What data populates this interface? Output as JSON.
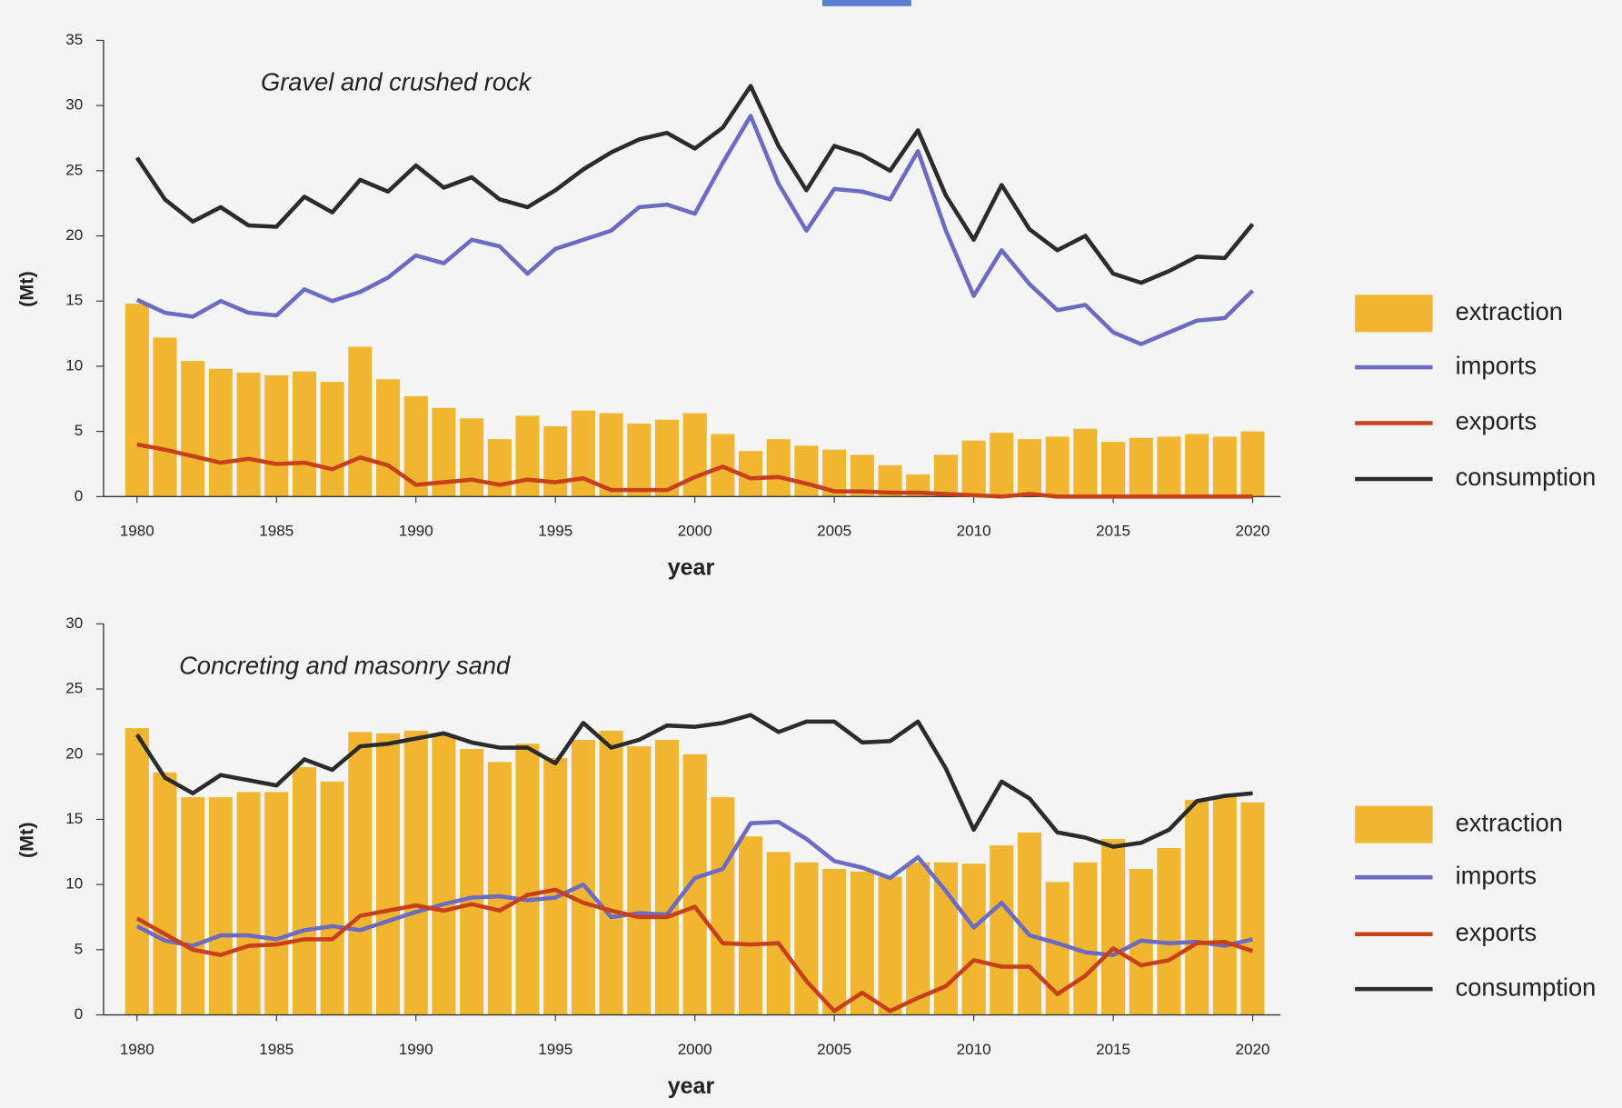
{
  "chart_data": [
    {
      "type": "combo",
      "title": "Gravel and crushed rock",
      "x_label": "year",
      "y_label": "(Mt)",
      "x": [
        1980,
        1981,
        1982,
        1983,
        1984,
        1985,
        1986,
        1987,
        1988,
        1989,
        1990,
        1991,
        1992,
        1993,
        1994,
        1995,
        1996,
        1997,
        1998,
        1999,
        2000,
        2001,
        2002,
        2003,
        2004,
        2005,
        2006,
        2007,
        2008,
        2009,
        2010,
        2011,
        2012,
        2013,
        2014,
        2015,
        2016,
        2017,
        2018,
        2019,
        2020
      ],
      "xlim": [
        1978.8,
        2021
      ],
      "xticks": [
        1980,
        1985,
        1990,
        1995,
        2000,
        2005,
        2010,
        2015,
        2020
      ],
      "ylim": [
        0,
        35
      ],
      "yticks": [
        0,
        5,
        10,
        15,
        20,
        25,
        30,
        35
      ],
      "legend": "right",
      "series": [
        {
          "name": "extraction",
          "kind": "bar",
          "color": "#f0b630",
          "values": [
            14.8,
            12.2,
            10.4,
            9.8,
            9.5,
            9.3,
            9.6,
            8.8,
            11.5,
            9.0,
            7.7,
            6.8,
            6.0,
            4.4,
            6.2,
            5.4,
            6.6,
            6.4,
            5.6,
            5.9,
            6.4,
            4.8,
            3.5,
            4.4,
            3.9,
            3.6,
            3.2,
            2.4,
            1.7,
            3.2,
            4.3,
            4.9,
            4.4,
            4.6,
            5.2,
            4.2,
            4.5,
            4.6,
            4.8,
            4.6,
            5.0
          ]
        },
        {
          "name": "imports",
          "kind": "line",
          "color": "#6b6bc4",
          "values": [
            15.1,
            14.1,
            13.8,
            15.0,
            14.1,
            13.9,
            15.9,
            15.0,
            15.7,
            16.8,
            18.5,
            17.9,
            19.7,
            19.2,
            17.1,
            19.0,
            19.7,
            20.4,
            22.2,
            22.4,
            21.7,
            25.6,
            29.2,
            24.0,
            20.4,
            23.6,
            23.4,
            22.8,
            26.5,
            20.4,
            15.4,
            18.9,
            16.3,
            14.3,
            14.7,
            12.6,
            11.7,
            12.6,
            13.5,
            13.7,
            15.8
          ]
        },
        {
          "name": "exports",
          "kind": "line",
          "color": "#c8401a",
          "values": [
            4.0,
            3.6,
            3.1,
            2.6,
            2.9,
            2.5,
            2.6,
            2.1,
            3.0,
            2.4,
            0.9,
            1.1,
            1.3,
            0.9,
            1.3,
            1.1,
            1.4,
            0.5,
            0.5,
            0.5,
            1.5,
            2.3,
            1.4,
            1.5,
            1.0,
            0.4,
            0.4,
            0.3,
            0.3,
            0.2,
            0.1,
            0,
            0.2,
            0,
            0,
            0,
            0,
            0,
            0,
            0,
            0
          ]
        },
        {
          "name": "consumption",
          "kind": "line",
          "color": "#2b2b2b",
          "values": [
            26.0,
            22.8,
            21.1,
            22.2,
            20.8,
            20.7,
            23.0,
            21.8,
            24.3,
            23.4,
            25.4,
            23.7,
            24.5,
            22.8,
            22.2,
            23.5,
            25.1,
            26.4,
            27.4,
            27.9,
            26.7,
            28.3,
            31.5,
            26.9,
            23.5,
            26.9,
            26.2,
            25.0,
            28.1,
            23.1,
            19.7,
            23.9,
            20.5,
            18.9,
            20.0,
            17.1,
            16.4,
            17.3,
            18.4,
            18.3,
            20.9
          ]
        }
      ]
    },
    {
      "type": "combo",
      "title": "Concreting and masonry sand",
      "x_label": "year",
      "y_label": "(Mt)",
      "x": [
        1980,
        1981,
        1982,
        1983,
        1984,
        1985,
        1986,
        1987,
        1988,
        1989,
        1990,
        1991,
        1992,
        1993,
        1994,
        1995,
        1996,
        1997,
        1998,
        1999,
        2000,
        2001,
        2002,
        2003,
        2004,
        2005,
        2006,
        2007,
        2008,
        2009,
        2010,
        2011,
        2012,
        2013,
        2014,
        2015,
        2016,
        2017,
        2018,
        2019,
        2020
      ],
      "xlim": [
        1978.8,
        2021
      ],
      "xticks": [
        1980,
        1985,
        1990,
        1995,
        2000,
        2005,
        2010,
        2015,
        2020
      ],
      "ylim": [
        0,
        30
      ],
      "yticks": [
        0,
        5,
        10,
        15,
        20,
        25,
        30
      ],
      "legend": "right",
      "series": [
        {
          "name": "extraction",
          "kind": "bar",
          "color": "#f0b630",
          "values": [
            22.0,
            18.6,
            16.7,
            16.7,
            17.1,
            17.1,
            19.0,
            17.9,
            21.7,
            21.6,
            21.8,
            21.5,
            20.4,
            19.4,
            20.8,
            19.7,
            21.1,
            21.8,
            20.6,
            21.1,
            20.0,
            16.7,
            13.7,
            12.5,
            11.7,
            11.2,
            11.0,
            10.6,
            11.7,
            11.7,
            11.6,
            13.0,
            14.0,
            10.2,
            11.7,
            13.5,
            11.2,
            12.8,
            16.5,
            16.8,
            16.3
          ]
        },
        {
          "name": "imports",
          "kind": "line",
          "color": "#6b6bc4",
          "values": [
            6.8,
            5.7,
            5.3,
            6.1,
            6.1,
            5.8,
            6.5,
            6.8,
            6.5,
            7.2,
            7.9,
            8.5,
            9.0,
            9.1,
            8.8,
            9.0,
            10.0,
            7.5,
            7.8,
            7.7,
            10.5,
            11.2,
            14.7,
            14.8,
            13.5,
            11.8,
            11.3,
            10.5,
            12.1,
            9.5,
            6.7,
            8.6,
            6.1,
            5.5,
            4.8,
            4.6,
            5.7,
            5.5,
            5.6,
            5.3,
            5.8
          ]
        },
        {
          "name": "exports",
          "kind": "line",
          "color": "#c8401a",
          "values": [
            7.4,
            6.2,
            5.0,
            4.6,
            5.3,
            5.4,
            5.8,
            5.8,
            7.6,
            8.0,
            8.4,
            8.0,
            8.5,
            8.0,
            9.2,
            9.6,
            8.6,
            8.0,
            7.5,
            7.5,
            8.3,
            5.5,
            5.4,
            5.5,
            2.6,
            0.3,
            1.7,
            0.3,
            1.3,
            2.2,
            4.2,
            3.7,
            3.7,
            1.6,
            3.0,
            5.1,
            3.8,
            4.2,
            5.5,
            5.6,
            4.9
          ]
        },
        {
          "name": "consumption",
          "kind": "line",
          "color": "#2b2b2b",
          "values": [
            21.5,
            18.2,
            17.0,
            18.4,
            18.0,
            17.6,
            19.6,
            18.8,
            20.6,
            20.8,
            21.2,
            21.6,
            20.9,
            20.5,
            20.5,
            19.3,
            22.4,
            20.5,
            21.1,
            22.2,
            22.1,
            22.4,
            23.0,
            21.7,
            22.5,
            22.5,
            20.9,
            21.0,
            22.5,
            18.9,
            14.2,
            17.9,
            16.6,
            14.0,
            13.6,
            12.9,
            13.2,
            14.2,
            16.4,
            16.8,
            17.0
          ]
        }
      ]
    }
  ]
}
